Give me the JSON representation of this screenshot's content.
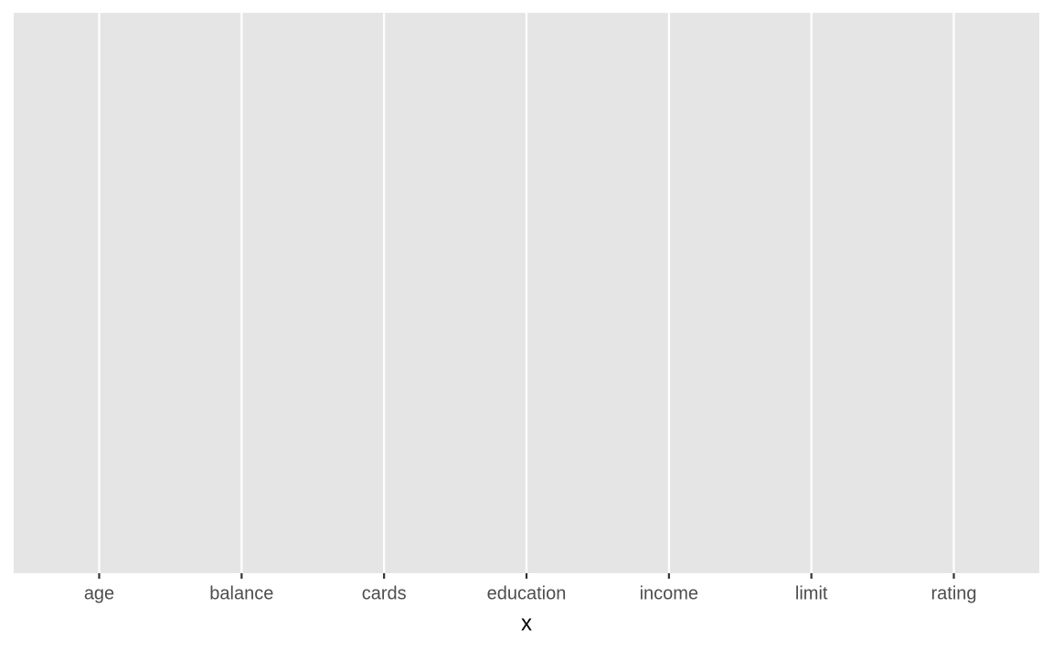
{
  "chart_data": {
    "type": "bar",
    "categories": [
      "age",
      "balance",
      "cards",
      "education",
      "income",
      "limit",
      "rating"
    ],
    "xlabel": "x",
    "grid": true
  }
}
